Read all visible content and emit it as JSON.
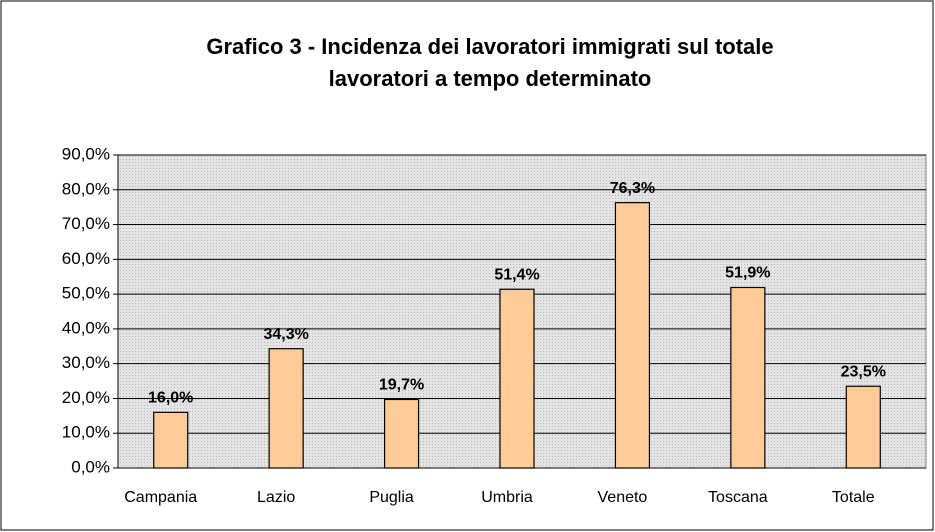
{
  "chart_data": {
    "type": "bar",
    "title": [
      "Grafico 3 - Incidenza dei lavoratori immigrati sul totale",
      "lavoratori a tempo determinato"
    ],
    "categories": [
      "Campania",
      "Lazio",
      "Puglia",
      "Umbria",
      "Veneto",
      "Toscana",
      "Totale"
    ],
    "values": [
      16.0,
      34.3,
      19.7,
      51.4,
      76.3,
      51.9,
      23.5
    ],
    "value_labels": [
      "16,0%",
      "34,3%",
      "19,7%",
      "51,4%",
      "76,3%",
      "51,9%",
      "23,5%"
    ],
    "color": "#ffcc99",
    "ylim": [
      0,
      90
    ],
    "yticks": [
      {
        "value": 0,
        "label": "0,0%"
      },
      {
        "value": 10,
        "label": "10,0%"
      },
      {
        "value": 20,
        "label": "20,0%"
      },
      {
        "value": 30,
        "label": "30,0%"
      },
      {
        "value": 40,
        "label": "40,0%"
      },
      {
        "value": 50,
        "label": "50,0%"
      },
      {
        "value": 60,
        "label": "60,0%"
      },
      {
        "value": 70,
        "label": "70,0%"
      },
      {
        "value": 80,
        "label": "80,0%"
      },
      {
        "value": 90,
        "label": "90,0%"
      }
    ],
    "grid": true
  }
}
